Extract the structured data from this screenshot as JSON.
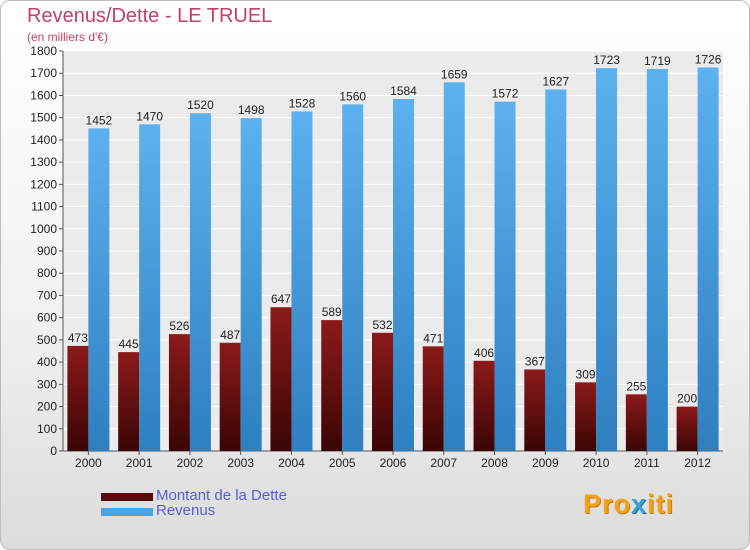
{
  "title": "Revenus/Dette - LE TRUEL",
  "subtitle": "(en milliers d'€)",
  "logo": {
    "part1": "Pro",
    "part2": "x",
    "part3": "iti"
  },
  "colors": {
    "debt": "#7a1414",
    "revenue": "#4aa3e6",
    "title": "#c0406e",
    "legend_text": "#5b5bd6"
  },
  "chart_data": {
    "type": "bar",
    "title": "Revenus/Dette - LE TRUEL",
    "subtitle": "(en milliers d'€)",
    "xlabel": "",
    "ylabel": "",
    "categories": [
      "2000",
      "2001",
      "2002",
      "2003",
      "2004",
      "2005",
      "2006",
      "2007",
      "2008",
      "2009",
      "2010",
      "2011",
      "2012"
    ],
    "ylim": [
      0,
      1800
    ],
    "yticks": [
      0,
      100,
      200,
      300,
      400,
      500,
      600,
      700,
      800,
      900,
      1000,
      1100,
      1200,
      1300,
      1400,
      1500,
      1600,
      1700,
      1800
    ],
    "grid": true,
    "legend": "bottom-left",
    "series": [
      {
        "name": "Montant de la Dette",
        "color": "#7a1414",
        "values": [
          473,
          445,
          526,
          487,
          647,
          589,
          532,
          471,
          406,
          367,
          309,
          255,
          200
        ]
      },
      {
        "name": "Revenus",
        "color": "#4aa3e6",
        "values": [
          1452,
          1470,
          1520,
          1498,
          1528,
          1560,
          1584,
          1659,
          1572,
          1627,
          1723,
          1719,
          1726
        ]
      }
    ]
  }
}
